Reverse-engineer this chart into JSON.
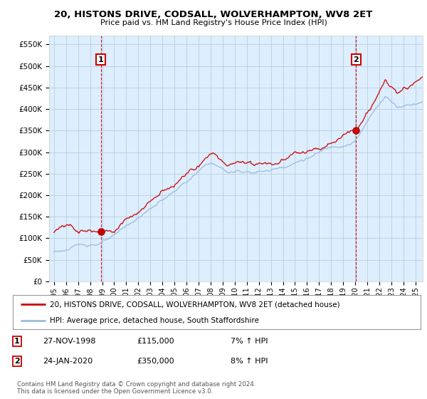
{
  "title": "20, HISTONS DRIVE, CODSALL, WOLVERHAMPTON, WV8 2ET",
  "subtitle": "Price paid vs. HM Land Registry's House Price Index (HPI)",
  "ylabel_ticks": [
    "£0",
    "£50K",
    "£100K",
    "£150K",
    "£200K",
    "£250K",
    "£300K",
    "£350K",
    "£400K",
    "£450K",
    "£500K",
    "£550K"
  ],
  "ytick_values": [
    0,
    50000,
    100000,
    150000,
    200000,
    250000,
    300000,
    350000,
    400000,
    450000,
    500000,
    550000
  ],
  "ylim": [
    0,
    570000
  ],
  "xlim_start": 1994.6,
  "xlim_end": 2025.6,
  "xtick_labels": [
    "1995",
    "1996",
    "1997",
    "1998",
    "1999",
    "2000",
    "2001",
    "2002",
    "2003",
    "2004",
    "2005",
    "2006",
    "2007",
    "2008",
    "2009",
    "2010",
    "2011",
    "2012",
    "2013",
    "2014",
    "2015",
    "2016",
    "2017",
    "2018",
    "2019",
    "2020",
    "2021",
    "2022",
    "2023",
    "2024",
    "2025"
  ],
  "transaction1_x": 1998.9,
  "transaction1_y": 115000,
  "transaction1_label": "1",
  "transaction1_date": "27-NOV-1998",
  "transaction1_price": "£115,000",
  "transaction1_hpi": "7% ↑ HPI",
  "transaction2_x": 2020.07,
  "transaction2_y": 350000,
  "transaction2_label": "2",
  "transaction2_date": "24-JAN-2020",
  "transaction2_price": "£350,000",
  "transaction2_hpi": "8% ↑ HPI",
  "line1_color": "#cc0000",
  "line2_color": "#99bbdd",
  "plot_bg_color": "#ddeeff",
  "bg_color": "#ffffff",
  "grid_color": "#bbccdd",
  "legend1_label": "20, HISTONS DRIVE, CODSALL, WOLVERHAMPTON, WV8 2ET (detached house)",
  "legend2_label": "HPI: Average price, detached house, South Staffordshire",
  "footer": "Contains HM Land Registry data © Crown copyright and database right 2024.\nThis data is licensed under the Open Government Licence v3.0.",
  "vline_color": "#cc0000",
  "marker_color": "#cc0000"
}
